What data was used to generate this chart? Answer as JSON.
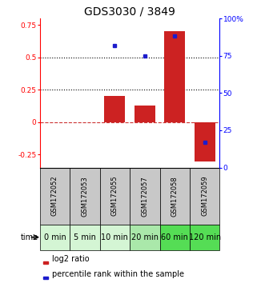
{
  "title": "GDS3030 / 3849",
  "categories": [
    "GSM172052",
    "GSM172053",
    "GSM172055",
    "GSM172057",
    "GSM172058",
    "GSM172059"
  ],
  "time_labels": [
    "0 min",
    "5 min",
    "10 min",
    "20 min",
    "60 min",
    "120 min"
  ],
  "log2_values": [
    0.0,
    0.0,
    0.2,
    0.13,
    0.7,
    -0.3
  ],
  "percentile_values": [
    null,
    null,
    0.82,
    0.75,
    0.88,
    0.17
  ],
  "bar_color": "#cc2222",
  "dot_color": "#1c1ccc",
  "ylim_left": [
    -0.35,
    0.8
  ],
  "ylim_right": [
    0.0,
    100.0
  ],
  "yticks_left": [
    -0.25,
    0.0,
    0.25,
    0.5,
    0.75
  ],
  "yticks_right": [
    0,
    25,
    50,
    75,
    100
  ],
  "hline_y_dashed": 0.0,
  "hline_y_dotted1": 0.25,
  "hline_y_dotted2": 0.5,
  "bar_width": 0.7,
  "gray_bg": "#c8c8c8",
  "green_colors": [
    "#d4f5d4",
    "#d4f5d4",
    "#d4f5d4",
    "#aae8aa",
    "#55dd55",
    "#55dd55"
  ],
  "title_fontsize": 10,
  "tick_fontsize": 6.5,
  "label_fontsize": 7,
  "gsm_fontsize": 6,
  "time_fontsize": 7
}
